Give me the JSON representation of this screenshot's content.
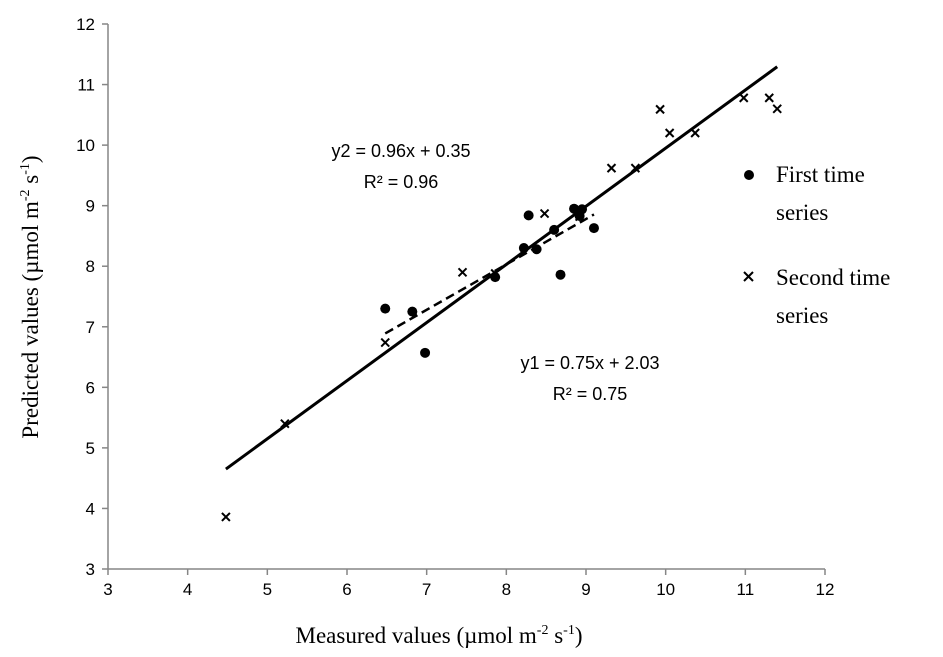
{
  "chart_data": {
    "type": "scatter",
    "xlabel": "Measured values (µmol m-2 s-1)",
    "ylabel": "Predicted values (µmol m-2 s-1)",
    "xlim": [
      3,
      12
    ],
    "ylim": [
      3,
      12
    ],
    "xticks": [
      3,
      4,
      5,
      6,
      7,
      8,
      9,
      10,
      11,
      12
    ],
    "yticks": [
      3,
      4,
      5,
      6,
      7,
      8,
      9,
      10,
      11,
      12
    ],
    "grid": false,
    "legend_position": "right",
    "series": [
      {
        "name": "First time series",
        "marker": "circle",
        "points": [
          [
            6.48,
            7.3
          ],
          [
            6.82,
            7.25
          ],
          [
            6.98,
            6.57
          ],
          [
            7.86,
            7.82
          ],
          [
            8.22,
            8.3
          ],
          [
            8.28,
            8.84
          ],
          [
            8.38,
            8.28
          ],
          [
            8.6,
            8.6
          ],
          [
            8.68,
            7.86
          ],
          [
            8.85,
            8.95
          ],
          [
            8.92,
            8.83
          ],
          [
            8.95,
            8.94
          ],
          [
            9.1,
            8.63
          ]
        ]
      },
      {
        "name": "Second time series",
        "marker": "x",
        "points": [
          [
            4.48,
            3.86
          ],
          [
            5.22,
            5.4
          ],
          [
            6.48,
            6.74
          ],
          [
            7.45,
            7.9
          ],
          [
            7.86,
            7.88
          ],
          [
            8.48,
            8.87
          ],
          [
            8.92,
            8.82
          ],
          [
            9.32,
            9.62
          ],
          [
            9.62,
            9.62
          ],
          [
            9.93,
            10.59
          ],
          [
            10.05,
            10.2
          ],
          [
            10.37,
            10.2
          ],
          [
            10.98,
            10.78
          ],
          [
            11.3,
            10.78
          ],
          [
            11.4,
            10.6
          ]
        ]
      }
    ],
    "trendlines": [
      {
        "label": "y1",
        "style": "dashed",
        "slope": 0.75,
        "intercept": 2.03,
        "x_range": [
          6.48,
          9.1
        ],
        "equation": "y1 = 0.75x + 2.03",
        "r2_text": "R² = 0.75"
      },
      {
        "label": "y2",
        "style": "solid",
        "slope": 0.96,
        "intercept": 0.35,
        "x_range": [
          4.48,
          11.4
        ],
        "equation": "y2 = 0.96x + 0.35",
        "r2_text": "R² = 0.96"
      }
    ],
    "legend": [
      {
        "marker": "circle",
        "lines": [
          "First time",
          "series"
        ]
      },
      {
        "marker": "x",
        "lines": [
          "Second time",
          "series"
        ]
      }
    ],
    "axis_title_parts": {
      "x": {
        "main": "Measured values (µmol m",
        "sup1": "-2",
        "mid": " s",
        "sup2": "-1",
        "end": ")"
      },
      "y": {
        "main": "Predicted values (µmol m",
        "sup1": "-2",
        "mid": " s",
        "sup2": "-1",
        "end": ")"
      }
    }
  }
}
